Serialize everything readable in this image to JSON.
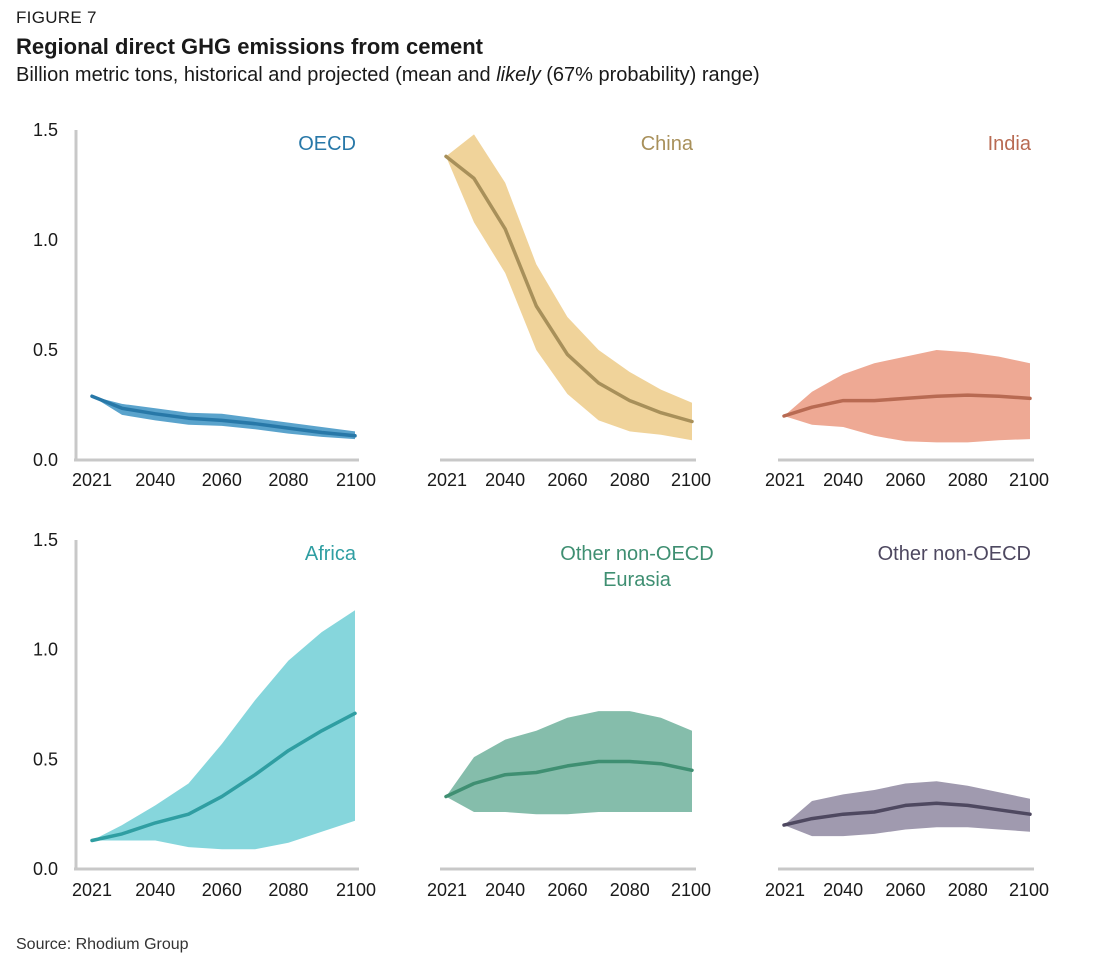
{
  "figure_label": "FIGURE 7",
  "title": "Regional direct GHG emissions from cement",
  "subtitle_pre": "Billion metric tons, historical and projected (mean and ",
  "subtitle_em": "likely",
  "subtitle_post": " (67% probability) range)",
  "source": "Source: Rhodium Group",
  "chart_data": {
    "type": "line",
    "layout": "small-multiples-2x3",
    "ylim": [
      0,
      1.5
    ],
    "yticks": [
      "0.0",
      "0.5",
      "1.0",
      "1.5"
    ],
    "xlim": [
      2021,
      2100
    ],
    "xticks": [
      2021,
      2040,
      2060,
      2080,
      2100
    ],
    "x": [
      2021,
      2030,
      2040,
      2050,
      2060,
      2070,
      2080,
      2090,
      2100
    ],
    "panels": [
      {
        "name": "OECD",
        "title_lines": [
          "OECD"
        ],
        "color": "#2878a8",
        "band_color": "#5aa3cc",
        "mean": [
          0.29,
          0.235,
          0.21,
          0.19,
          0.18,
          0.165,
          0.145,
          0.125,
          0.11
        ],
        "low": [
          0.29,
          0.205,
          0.18,
          0.16,
          0.155,
          0.14,
          0.12,
          0.105,
          0.095
        ],
        "high": [
          0.29,
          0.255,
          0.235,
          0.215,
          0.21,
          0.19,
          0.17,
          0.15,
          0.13
        ]
      },
      {
        "name": "China",
        "title_lines": [
          "China"
        ],
        "color": "#a8905a",
        "band_color": "#f0d39a",
        "mean": [
          1.38,
          1.28,
          1.05,
          0.7,
          0.48,
          0.35,
          0.27,
          0.215,
          0.175
        ],
        "low": [
          1.38,
          1.08,
          0.85,
          0.5,
          0.3,
          0.18,
          0.13,
          0.115,
          0.09
        ],
        "high": [
          1.38,
          1.48,
          1.26,
          0.89,
          0.65,
          0.5,
          0.4,
          0.32,
          0.26
        ]
      },
      {
        "name": "India",
        "title_lines": [
          "India"
        ],
        "color": "#b86a52",
        "band_color": "#eea994",
        "mean": [
          0.2,
          0.24,
          0.27,
          0.27,
          0.28,
          0.29,
          0.295,
          0.29,
          0.28
        ],
        "low": [
          0.2,
          0.16,
          0.15,
          0.11,
          0.085,
          0.08,
          0.08,
          0.09,
          0.095
        ],
        "high": [
          0.2,
          0.31,
          0.39,
          0.44,
          0.47,
          0.5,
          0.49,
          0.47,
          0.44
        ]
      },
      {
        "name": "Africa",
        "title_lines": [
          "Africa"
        ],
        "color": "#2f9ea2",
        "band_color": "#86d6dc",
        "mean": [
          0.13,
          0.16,
          0.21,
          0.25,
          0.33,
          0.43,
          0.54,
          0.63,
          0.71
        ],
        "low": [
          0.13,
          0.13,
          0.13,
          0.1,
          0.09,
          0.09,
          0.12,
          0.17,
          0.22
        ],
        "high": [
          0.13,
          0.2,
          0.29,
          0.39,
          0.57,
          0.77,
          0.95,
          1.08,
          1.18
        ]
      },
      {
        "name": "Other non-OECD Eurasia",
        "title_lines": [
          "Other non-OECD",
          "Eurasia"
        ],
        "color": "#3f8f72",
        "band_color": "#85bdab",
        "mean": [
          0.33,
          0.39,
          0.43,
          0.44,
          0.47,
          0.49,
          0.49,
          0.48,
          0.45
        ],
        "low": [
          0.33,
          0.26,
          0.26,
          0.25,
          0.25,
          0.26,
          0.26,
          0.26,
          0.26
        ],
        "high": [
          0.33,
          0.51,
          0.59,
          0.63,
          0.69,
          0.72,
          0.72,
          0.69,
          0.63
        ]
      },
      {
        "name": "Other non-OECD",
        "title_lines": [
          "Other non-OECD"
        ],
        "color": "#4e4860",
        "band_color": "#a09aaf",
        "mean": [
          0.2,
          0.23,
          0.25,
          0.26,
          0.29,
          0.3,
          0.29,
          0.27,
          0.25
        ],
        "low": [
          0.2,
          0.15,
          0.15,
          0.16,
          0.18,
          0.19,
          0.19,
          0.18,
          0.17
        ],
        "high": [
          0.2,
          0.31,
          0.34,
          0.36,
          0.39,
          0.4,
          0.38,
          0.35,
          0.32
        ]
      }
    ]
  }
}
